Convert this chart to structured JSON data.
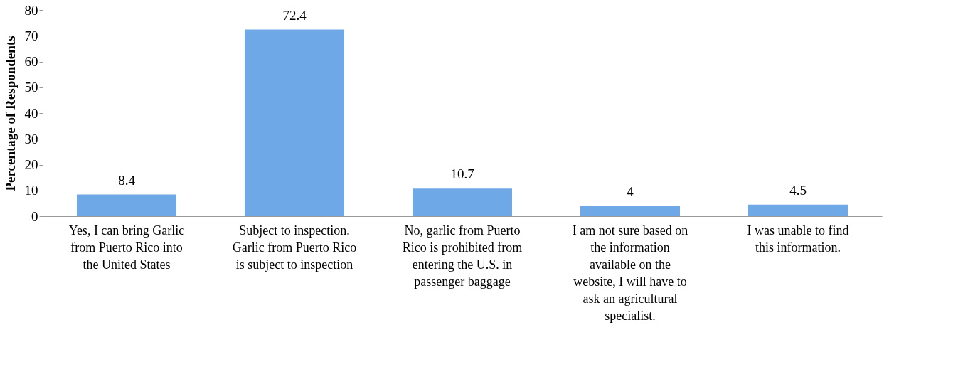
{
  "chart_data": {
    "type": "bar",
    "ylabel": "Percentage of Respondents",
    "categories": [
      "Yes, I can bring Garlic from Puerto Rico into the United States",
      "Subject to inspection. Garlic from Puerto Rico is subject to inspection",
      "No, garlic from Puerto Rico is prohibited from entering the U.S. in passenger baggage",
      "I am not sure based on the information available on the website, I will have to ask an agricultural specialist.",
      "I was unable to find this information."
    ],
    "values": [
      8.4,
      72.4,
      10.7,
      4,
      4.5
    ],
    "color": "#6fa8e6",
    "ylim": [
      0,
      80
    ],
    "yticks": [
      0,
      10,
      20,
      30,
      40,
      50,
      60,
      70,
      80
    ],
    "grid": false,
    "data_labels": true
  }
}
